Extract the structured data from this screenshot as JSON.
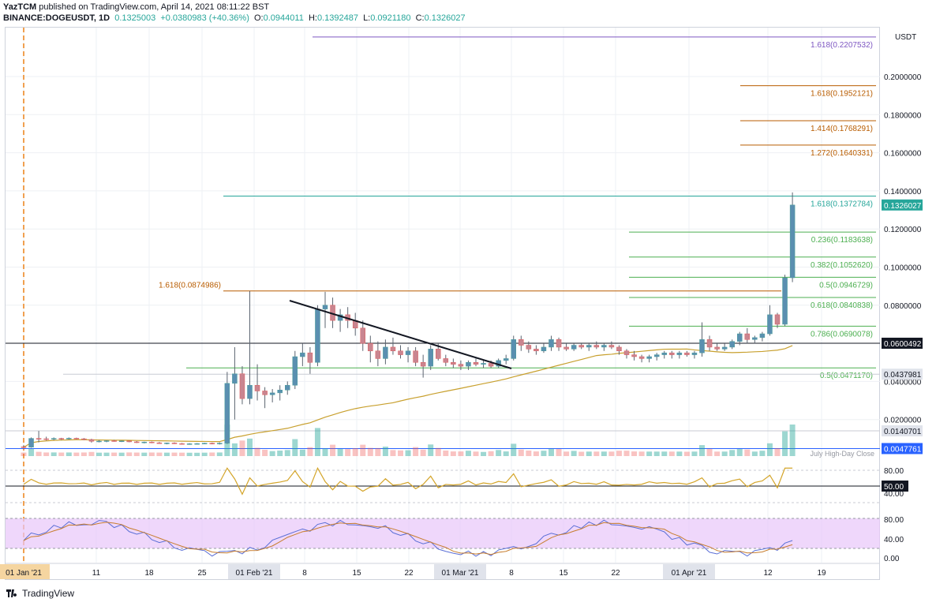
{
  "header": {
    "publisher": "YazTCM",
    "published_text": "published on TradingView.com, April 14, 2021 08:11:22 BST",
    "symbol": "BINANCE:DOGEUSDT, 1D",
    "last": "0.1325003",
    "change": "+0.0380983 (+40.36%)",
    "o_label": "O:",
    "o_value": "0.0944011",
    "h_label": "H:",
    "h_value": "0.1392487",
    "l_label": "L:",
    "l_value": "0.0921180",
    "c_label": "C:",
    "c_value": "0.1326027"
  },
  "footer": {
    "brand": "TradingView"
  },
  "colors": {
    "up": "#26a69a",
    "down": "#ef5350",
    "ma": "#c8a02e",
    "fib": "#4caf50",
    "ext": "#b85c00",
    "top_ext": "#7e57c2",
    "teal": "#26a69a",
    "rsi": "#d4a52a",
    "stoch_k": "#5b6fd6",
    "stoch_d": "#c77d2e",
    "stoch_band": "#e8c6fa"
  },
  "chart_data": {
    "type": "candlestick",
    "currency_label": "USDT",
    "y_ticks": [
      "0.2000000",
      "0.1800000",
      "0.1600000",
      "0.1400000",
      "0.1200000",
      "0.1000000",
      "0.0800000",
      "0.0400000",
      "0.0200000"
    ],
    "x_ticks": [
      "01 Jan '21",
      "11",
      "18",
      "25",
      "01 Feb '21",
      "8",
      "15",
      "22",
      "01 Mar '21",
      "8",
      "15",
      "22",
      "01 Apr '21",
      "12",
      "19"
    ],
    "price_badges": [
      {
        "label": "0.1326027",
        "value": 0.1326027,
        "style": "teal"
      },
      {
        "label": "0.0600492",
        "value": 0.0600492,
        "style": "dark"
      },
      {
        "label": "0.0437981",
        "value": 0.0437981,
        "style": "light"
      },
      {
        "label": "0.0140701",
        "value": 0.0140701,
        "style": "light"
      },
      {
        "label": "0.0047761",
        "value": 0.0047761,
        "style": "blue"
      }
    ],
    "fib_levels": [
      {
        "label": "1.618(0.2207532)",
        "value": 0.2207532,
        "color": "purple"
      },
      {
        "label": "1.618(0.1952121)",
        "value": 0.1952121,
        "color": "orange"
      },
      {
        "label": "1.414(0.1768291)",
        "value": 0.1768291,
        "color": "orange"
      },
      {
        "label": "1.272(0.1640331)",
        "value": 0.1640331,
        "color": "orange"
      },
      {
        "label": "1.618(0.1372784)",
        "value": 0.1372784,
        "color": "teal"
      },
      {
        "label": "0.236(0.1183638)",
        "value": 0.1183638,
        "color": "green"
      },
      {
        "label": "0.382(0.1052620)",
        "value": 0.105262,
        "color": "green"
      },
      {
        "label": "0.5(0.0946729)",
        "value": 0.0946729,
        "color": "green"
      },
      {
        "label": "0.618(0.0840838)",
        "value": 0.0840838,
        "color": "green"
      },
      {
        "label": "0.786(0.0690078)",
        "value": 0.0690078,
        "color": "green"
      },
      {
        "label": "0.5(0.0471170)",
        "value": 0.047117,
        "color": "green"
      },
      {
        "label": "1.618(0.0874986)",
        "value": 0.0874986,
        "color": "orange"
      }
    ],
    "annotations": [
      "July High-Day Close"
    ],
    "rsi_ticks": [
      "80.00",
      "50.00",
      "40.00"
    ],
    "stoch_ticks": [
      "80.00",
      "40.00",
      "0.00"
    ],
    "candles": [
      {
        "o": 0.0057,
        "h": 0.0065,
        "l": 0.0052,
        "c": 0.0055
      },
      {
        "o": 0.0055,
        "h": 0.0106,
        "l": 0.0052,
        "c": 0.0101
      },
      {
        "o": 0.0101,
        "h": 0.014,
        "l": 0.008,
        "c": 0.0099
      },
      {
        "o": 0.0099,
        "h": 0.011,
        "l": 0.009,
        "c": 0.0097
      },
      {
        "o": 0.0097,
        "h": 0.0106,
        "l": 0.0092,
        "c": 0.0101
      },
      {
        "o": 0.0101,
        "h": 0.0104,
        "l": 0.0093,
        "c": 0.0098
      },
      {
        "o": 0.0098,
        "h": 0.0106,
        "l": 0.0095,
        "c": 0.0102
      },
      {
        "o": 0.0102,
        "h": 0.0105,
        "l": 0.0096,
        "c": 0.0099
      },
      {
        "o": 0.0099,
        "h": 0.0103,
        "l": 0.0092,
        "c": 0.0095
      },
      {
        "o": 0.0095,
        "h": 0.0099,
        "l": 0.0079,
        "c": 0.0086
      },
      {
        "o": 0.0086,
        "h": 0.0092,
        "l": 0.008,
        "c": 0.0087
      },
      {
        "o": 0.0087,
        "h": 0.0091,
        "l": 0.0081,
        "c": 0.0089
      },
      {
        "o": 0.0089,
        "h": 0.0093,
        "l": 0.0084,
        "c": 0.0086
      },
      {
        "o": 0.0086,
        "h": 0.009,
        "l": 0.0082,
        "c": 0.0088
      },
      {
        "o": 0.0088,
        "h": 0.009,
        "l": 0.0081,
        "c": 0.0083
      },
      {
        "o": 0.0083,
        "h": 0.0087,
        "l": 0.0077,
        "c": 0.008
      },
      {
        "o": 0.008,
        "h": 0.0084,
        "l": 0.0075,
        "c": 0.0082
      },
      {
        "o": 0.0082,
        "h": 0.0085,
        "l": 0.0076,
        "c": 0.0078
      },
      {
        "o": 0.0078,
        "h": 0.0082,
        "l": 0.0073,
        "c": 0.0075
      },
      {
        "o": 0.0075,
        "h": 0.0079,
        "l": 0.007,
        "c": 0.0077
      },
      {
        "o": 0.0077,
        "h": 0.008,
        "l": 0.0072,
        "c": 0.0074
      },
      {
        "o": 0.0074,
        "h": 0.0077,
        "l": 0.0069,
        "c": 0.0072
      },
      {
        "o": 0.0072,
        "h": 0.0076,
        "l": 0.0068,
        "c": 0.0073
      },
      {
        "o": 0.0073,
        "h": 0.0076,
        "l": 0.007,
        "c": 0.0074
      },
      {
        "o": 0.0074,
        "h": 0.0078,
        "l": 0.0071,
        "c": 0.0076
      },
      {
        "o": 0.0076,
        "h": 0.0079,
        "l": 0.007,
        "c": 0.0072
      },
      {
        "o": 0.0072,
        "h": 0.008,
        "l": 0.0069,
        "c": 0.0076
      },
      {
        "o": 0.0076,
        "h": 0.045,
        "l": 0.0072,
        "c": 0.039
      },
      {
        "o": 0.039,
        "h": 0.058,
        "l": 0.02,
        "c": 0.044
      },
      {
        "o": 0.044,
        "h": 0.048,
        "l": 0.028,
        "c": 0.031
      },
      {
        "o": 0.031,
        "h": 0.0874,
        "l": 0.028,
        "c": 0.038
      },
      {
        "o": 0.038,
        "h": 0.049,
        "l": 0.03,
        "c": 0.035
      },
      {
        "o": 0.035,
        "h": 0.037,
        "l": 0.026,
        "c": 0.033
      },
      {
        "o": 0.033,
        "h": 0.036,
        "l": 0.029,
        "c": 0.034
      },
      {
        "o": 0.034,
        "h": 0.038,
        "l": 0.03,
        "c": 0.0355
      },
      {
        "o": 0.0355,
        "h": 0.04,
        "l": 0.033,
        "c": 0.038
      },
      {
        "o": 0.038,
        "h": 0.056,
        "l": 0.036,
        "c": 0.053
      },
      {
        "o": 0.053,
        "h": 0.06,
        "l": 0.048,
        "c": 0.055
      },
      {
        "o": 0.055,
        "h": 0.058,
        "l": 0.044,
        "c": 0.05
      },
      {
        "o": 0.05,
        "h": 0.08,
        "l": 0.048,
        "c": 0.078
      },
      {
        "o": 0.078,
        "h": 0.087,
        "l": 0.068,
        "c": 0.08
      },
      {
        "o": 0.08,
        "h": 0.084,
        "l": 0.068,
        "c": 0.072
      },
      {
        "o": 0.072,
        "h": 0.078,
        "l": 0.066,
        "c": 0.075
      },
      {
        "o": 0.075,
        "h": 0.079,
        "l": 0.068,
        "c": 0.072
      },
      {
        "o": 0.072,
        "h": 0.076,
        "l": 0.064,
        "c": 0.068
      },
      {
        "o": 0.068,
        "h": 0.072,
        "l": 0.056,
        "c": 0.06
      },
      {
        "o": 0.06,
        "h": 0.064,
        "l": 0.05,
        "c": 0.056
      },
      {
        "o": 0.056,
        "h": 0.061,
        "l": 0.048,
        "c": 0.052
      },
      {
        "o": 0.052,
        "h": 0.062,
        "l": 0.049,
        "c": 0.058
      },
      {
        "o": 0.058,
        "h": 0.063,
        "l": 0.054,
        "c": 0.056
      },
      {
        "o": 0.056,
        "h": 0.059,
        "l": 0.052,
        "c": 0.054
      },
      {
        "o": 0.054,
        "h": 0.058,
        "l": 0.05,
        "c": 0.056
      },
      {
        "o": 0.056,
        "h": 0.058,
        "l": 0.048,
        "c": 0.05
      },
      {
        "o": 0.05,
        "h": 0.054,
        "l": 0.042,
        "c": 0.048
      },
      {
        "o": 0.048,
        "h": 0.059,
        "l": 0.046,
        "c": 0.057
      },
      {
        "o": 0.057,
        "h": 0.06,
        "l": 0.051,
        "c": 0.052
      },
      {
        "o": 0.052,
        "h": 0.054,
        "l": 0.048,
        "c": 0.05
      },
      {
        "o": 0.05,
        "h": 0.052,
        "l": 0.047,
        "c": 0.049
      },
      {
        "o": 0.049,
        "h": 0.051,
        "l": 0.046,
        "c": 0.048
      },
      {
        "o": 0.048,
        "h": 0.051,
        "l": 0.046,
        "c": 0.05
      },
      {
        "o": 0.05,
        "h": 0.052,
        "l": 0.048,
        "c": 0.049
      },
      {
        "o": 0.049,
        "h": 0.051,
        "l": 0.047,
        "c": 0.0495
      },
      {
        "o": 0.0495,
        "h": 0.051,
        "l": 0.047,
        "c": 0.048
      },
      {
        "o": 0.048,
        "h": 0.052,
        "l": 0.047,
        "c": 0.051
      },
      {
        "o": 0.051,
        "h": 0.054,
        "l": 0.049,
        "c": 0.052
      },
      {
        "o": 0.052,
        "h": 0.064,
        "l": 0.051,
        "c": 0.062
      },
      {
        "o": 0.062,
        "h": 0.064,
        "l": 0.056,
        "c": 0.059
      },
      {
        "o": 0.059,
        "h": 0.061,
        "l": 0.055,
        "c": 0.057
      },
      {
        "o": 0.057,
        "h": 0.059,
        "l": 0.054,
        "c": 0.056
      },
      {
        "o": 0.056,
        "h": 0.06,
        "l": 0.055,
        "c": 0.058
      },
      {
        "o": 0.058,
        "h": 0.064,
        "l": 0.056,
        "c": 0.062
      },
      {
        "o": 0.062,
        "h": 0.063,
        "l": 0.056,
        "c": 0.058
      },
      {
        "o": 0.058,
        "h": 0.06,
        "l": 0.056,
        "c": 0.057
      },
      {
        "o": 0.057,
        "h": 0.06,
        "l": 0.056,
        "c": 0.059
      },
      {
        "o": 0.059,
        "h": 0.06,
        "l": 0.057,
        "c": 0.058
      },
      {
        "o": 0.058,
        "h": 0.06,
        "l": 0.056,
        "c": 0.059
      },
      {
        "o": 0.059,
        "h": 0.061,
        "l": 0.057,
        "c": 0.058
      },
      {
        "o": 0.058,
        "h": 0.06,
        "l": 0.056,
        "c": 0.059
      },
      {
        "o": 0.059,
        "h": 0.061,
        "l": 0.057,
        "c": 0.058
      },
      {
        "o": 0.058,
        "h": 0.059,
        "l": 0.054,
        "c": 0.056
      },
      {
        "o": 0.056,
        "h": 0.057,
        "l": 0.052,
        "c": 0.054
      },
      {
        "o": 0.054,
        "h": 0.056,
        "l": 0.051,
        "c": 0.053
      },
      {
        "o": 0.053,
        "h": 0.054,
        "l": 0.05,
        "c": 0.052
      },
      {
        "o": 0.052,
        "h": 0.054,
        "l": 0.05,
        "c": 0.053
      },
      {
        "o": 0.053,
        "h": 0.055,
        "l": 0.051,
        "c": 0.054
      },
      {
        "o": 0.054,
        "h": 0.056,
        "l": 0.052,
        "c": 0.055
      },
      {
        "o": 0.055,
        "h": 0.056,
        "l": 0.052,
        "c": 0.054
      },
      {
        "o": 0.054,
        "h": 0.056,
        "l": 0.052,
        "c": 0.055
      },
      {
        "o": 0.055,
        "h": 0.056,
        "l": 0.053,
        "c": 0.054
      },
      {
        "o": 0.054,
        "h": 0.056,
        "l": 0.052,
        "c": 0.055
      },
      {
        "o": 0.055,
        "h": 0.071,
        "l": 0.053,
        "c": 0.062
      },
      {
        "o": 0.062,
        "h": 0.064,
        "l": 0.056,
        "c": 0.058
      },
      {
        "o": 0.058,
        "h": 0.06,
        "l": 0.056,
        "c": 0.057
      },
      {
        "o": 0.057,
        "h": 0.06,
        "l": 0.056,
        "c": 0.058
      },
      {
        "o": 0.058,
        "h": 0.062,
        "l": 0.057,
        "c": 0.061
      },
      {
        "o": 0.061,
        "h": 0.066,
        "l": 0.059,
        "c": 0.065
      },
      {
        "o": 0.065,
        "h": 0.068,
        "l": 0.06,
        "c": 0.062
      },
      {
        "o": 0.062,
        "h": 0.064,
        "l": 0.06,
        "c": 0.063
      },
      {
        "o": 0.063,
        "h": 0.066,
        "l": 0.061,
        "c": 0.065
      },
      {
        "o": 0.065,
        "h": 0.08,
        "l": 0.064,
        "c": 0.075
      },
      {
        "o": 0.075,
        "h": 0.076,
        "l": 0.068,
        "c": 0.07
      },
      {
        "o": 0.07,
        "h": 0.096,
        "l": 0.069,
        "c": 0.0944
      },
      {
        "o": 0.0944,
        "h": 0.1392,
        "l": 0.0921,
        "c": 0.1326
      }
    ]
  }
}
